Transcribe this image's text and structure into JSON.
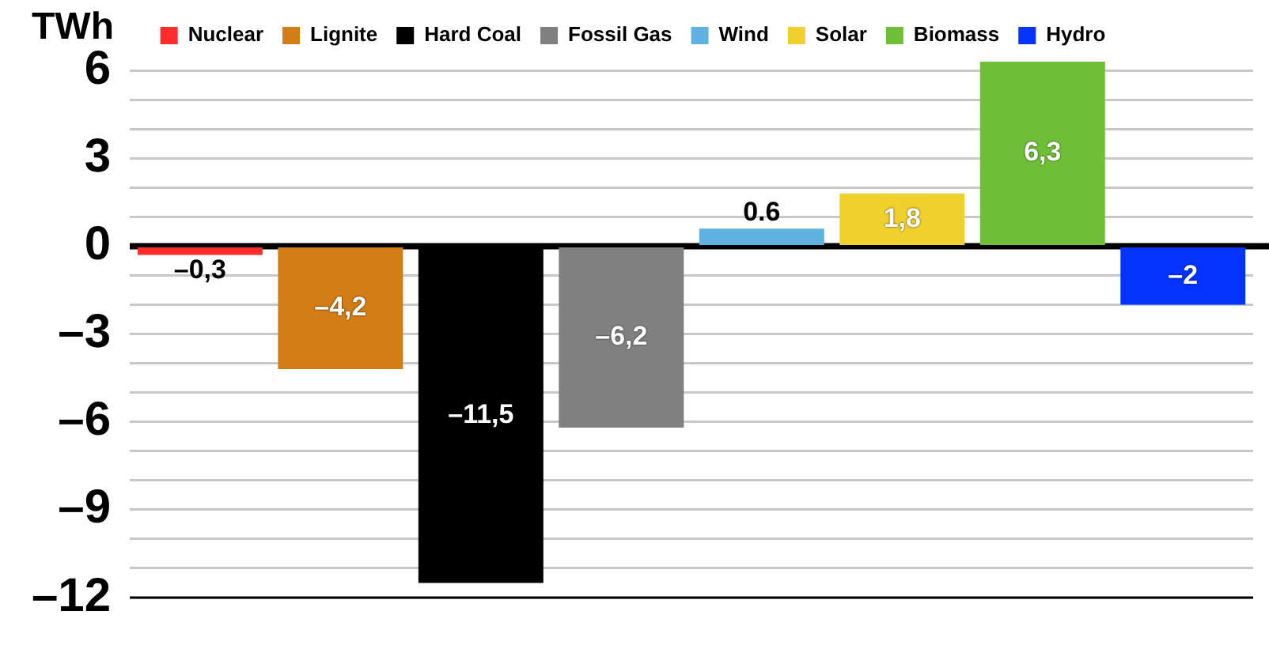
{
  "chart_data": {
    "type": "bar",
    "ylabel": "TWh",
    "categories": [
      null,
      null,
      null,
      null,
      null,
      null,
      null,
      null
    ],
    "series": [
      {
        "name": "Nuclear",
        "color": "#fc2d2a",
        "values": [
          -0.3,
          null,
          null,
          null,
          null,
          null,
          null,
          null
        ],
        "value_labels": [
          "–0,3",
          null,
          null,
          null,
          null,
          null,
          null,
          null
        ]
      },
      {
        "name": "Lignite",
        "color": "#d27d16",
        "values": [
          null,
          -4.2,
          null,
          null,
          null,
          null,
          null,
          null
        ],
        "value_labels": [
          null,
          "–4,2",
          null,
          null,
          null,
          null,
          null,
          null
        ]
      },
      {
        "name": "Hard Coal",
        "color": "#000000",
        "values": [
          null,
          null,
          -11.5,
          null,
          null,
          null,
          null,
          null
        ],
        "value_labels": [
          null,
          null,
          "–11,5",
          null,
          null,
          null,
          null,
          null
        ]
      },
      {
        "name": "Fossil Gas",
        "color": "#808080",
        "values": [
          null,
          null,
          null,
          -6.2,
          null,
          null,
          null,
          null
        ],
        "value_labels": [
          null,
          null,
          null,
          "–6,2",
          null,
          null,
          null,
          null
        ]
      },
      {
        "name": "Wind",
        "color": "#5fb2df",
        "values": [
          null,
          null,
          null,
          null,
          0.6,
          null,
          null,
          null
        ],
        "value_labels": [
          null,
          null,
          null,
          null,
          "0.6",
          null,
          null,
          null
        ]
      },
      {
        "name": "Solar",
        "color": "#f0d02c",
        "values": [
          null,
          null,
          null,
          null,
          null,
          1.8,
          null,
          null
        ],
        "value_labels": [
          null,
          null,
          null,
          null,
          null,
          "1,8",
          null,
          null
        ]
      },
      {
        "name": "Biomass",
        "color": "#6ebf37",
        "values": [
          null,
          null,
          null,
          null,
          null,
          null,
          6.3,
          null
        ],
        "value_labels": [
          null,
          null,
          null,
          null,
          null,
          null,
          "6,3",
          null
        ]
      },
      {
        "name": "Hydro",
        "color": "#0433ff",
        "values": [
          null,
          null,
          null,
          null,
          null,
          null,
          null,
          -2
        ],
        "value_labels": [
          null,
          null,
          null,
          null,
          null,
          null,
          null,
          "–2"
        ]
      }
    ],
    "ylim": [
      -12,
      6.3
    ],
    "yticks": [
      {
        "value": -12,
        "label": "–12"
      },
      {
        "value": -11,
        "label": null
      },
      {
        "value": -10,
        "label": null
      },
      {
        "value": -9,
        "label": "–9"
      },
      {
        "value": -8,
        "label": null
      },
      {
        "value": -7,
        "label": null
      },
      {
        "value": -6,
        "label": "–6"
      },
      {
        "value": -5,
        "label": null
      },
      {
        "value": -4,
        "label": null
      },
      {
        "value": -3,
        "label": "–3"
      },
      {
        "value": -2,
        "label": null
      },
      {
        "value": -1,
        "label": null
      },
      0,
      {
        "value": 1,
        "label": null
      },
      {
        "value": 2,
        "label": null
      },
      3,
      {
        "value": 4,
        "label": null
      },
      {
        "value": 5,
        "label": null
      },
      6
    ],
    "grid": "y",
    "legend": "top"
  }
}
